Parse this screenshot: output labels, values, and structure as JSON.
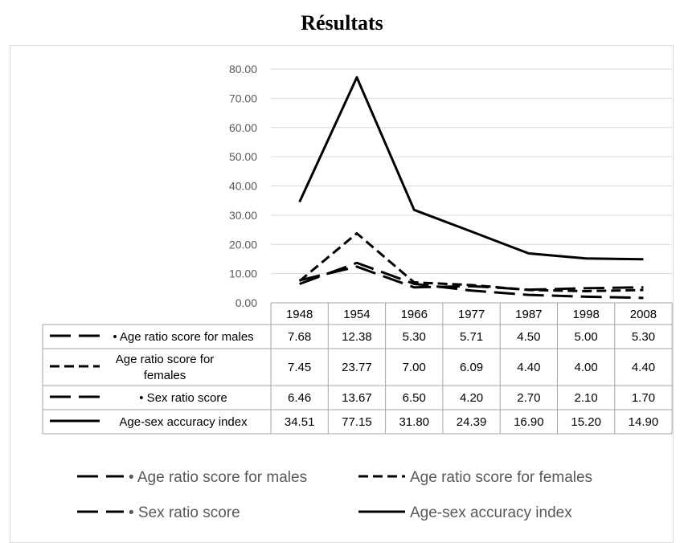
{
  "chart_data": {
    "type": "line",
    "title": "Résultats",
    "categories": [
      "1948",
      "1954",
      "1966",
      "1977",
      "1987",
      "1998",
      "2008"
    ],
    "ylim": [
      0,
      80
    ],
    "yticks": [
      "0.00",
      "10.00",
      "20.00",
      "30.00",
      "40.00",
      "50.00",
      "60.00",
      "70.00",
      "80.00"
    ],
    "grid": true,
    "legend_position": "bottom",
    "series": [
      {
        "name": "• Age ratio score for males",
        "table_label": [
          "• Age ratio score for males"
        ],
        "values": [
          7.68,
          12.38,
          5.3,
          5.71,
          4.5,
          5.0,
          5.3
        ],
        "labels": [
          "7.68",
          "12.38",
          "5.30",
          "5.71",
          "4.50",
          "5.00",
          "5.30"
        ],
        "style": "long-dash"
      },
      {
        "name": "Age ratio score for females",
        "table_label": [
          "Age ratio score for",
          "females"
        ],
        "values": [
          7.45,
          23.77,
          7.0,
          6.09,
          4.4,
          4.0,
          4.4
        ],
        "labels": [
          "7.45",
          "23.77",
          "7.00",
          "6.09",
          "4.40",
          "4.00",
          "4.40"
        ],
        "style": "dash"
      },
      {
        "name": "• Sex ratio score",
        "table_label": [
          "• Sex ratio score"
        ],
        "values": [
          6.46,
          13.67,
          6.5,
          4.2,
          2.7,
          2.1,
          1.7
        ],
        "labels": [
          "6.46",
          "13.67",
          "6.50",
          "4.20",
          "2.70",
          "2.10",
          "1.70"
        ],
        "style": "long-dash"
      },
      {
        "name": "Age-sex accuracy index",
        "table_label": [
          "Age-sex accuracy index"
        ],
        "values": [
          34.51,
          77.15,
          31.8,
          24.39,
          16.9,
          15.2,
          14.9
        ],
        "labels": [
          "34.51",
          "77.15",
          "31.80",
          "24.39",
          "16.90",
          "15.20",
          "14.90"
        ],
        "style": "solid"
      }
    ],
    "line_color": "#000000",
    "grid_color": "#d9d9d9"
  }
}
